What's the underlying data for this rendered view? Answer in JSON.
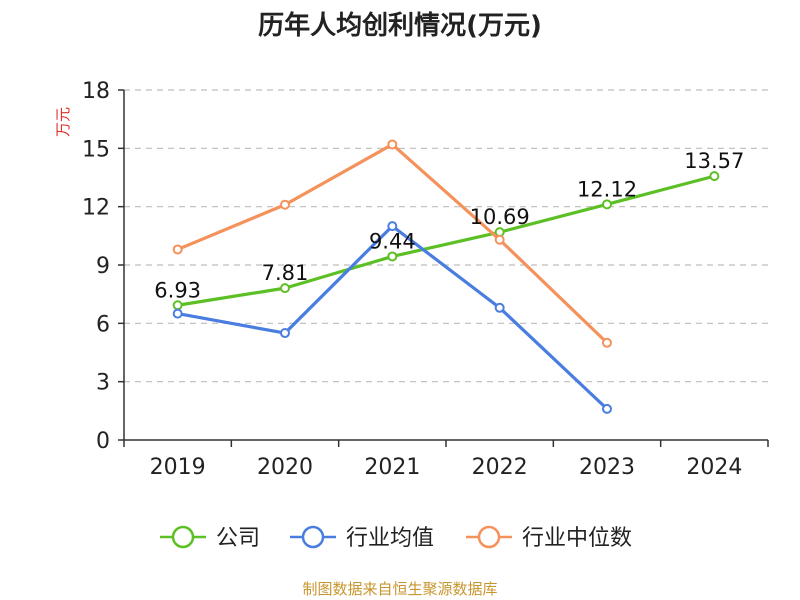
{
  "chart_data": {
    "type": "line",
    "title": "历年人均创利情况(万元)",
    "ylabel": "万元",
    "xlabel": "",
    "categories": [
      "2019",
      "2020",
      "2021",
      "2022",
      "2023",
      "2024"
    ],
    "ylim": [
      0,
      18
    ],
    "yticks": [
      "0",
      "3",
      "6",
      "9",
      "12",
      "15",
      "18"
    ],
    "grid": true,
    "legend_position": "bottom",
    "series": [
      {
        "name": "公司",
        "color": "#5cc025",
        "values": [
          6.93,
          7.81,
          9.44,
          10.69,
          12.12,
          13.57
        ],
        "labels": [
          "6.93",
          "7.81",
          "9.44",
          "10.69",
          "12.12",
          "13.57"
        ]
      },
      {
        "name": "行业均值",
        "color": "#4a7de0",
        "values": [
          6.5,
          5.5,
          11.0,
          6.8,
          1.6,
          null
        ]
      },
      {
        "name": "行业中位数",
        "color": "#f5915a",
        "values": [
          9.8,
          12.1,
          15.2,
          10.3,
          5.0,
          null
        ]
      }
    ],
    "source": "制图数据来自恒生聚源数据库"
  }
}
